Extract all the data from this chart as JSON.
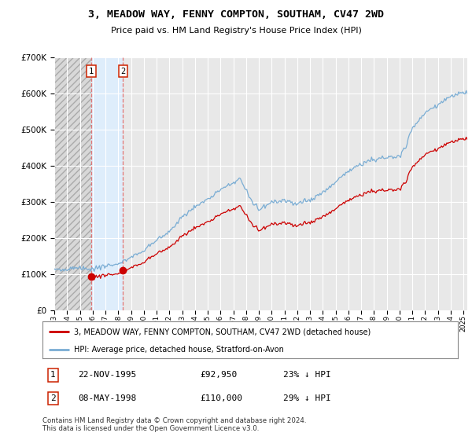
{
  "title": "3, MEADOW WAY, FENNY COMPTON, SOUTHAM, CV47 2WD",
  "subtitle": "Price paid vs. HM Land Registry's House Price Index (HPI)",
  "background_color": "#ffffff",
  "plot_bg_color": "#e8e8e8",
  "grid_color": "#ffffff",
  "hpi_color": "#7aadd4",
  "sale_color": "#cc0000",
  "highlight_color": "#ddeeff",
  "sale1_date": 1995.9,
  "sale1_price": 92950,
  "sale2_date": 1998.37,
  "sale2_price": 110000,
  "sale1_info": "22-NOV-1995",
  "sale1_amount": "£92,950",
  "sale1_hpi": "23% ↓ HPI",
  "sale2_info": "08-MAY-1998",
  "sale2_amount": "£110,000",
  "sale2_hpi": "29% ↓ HPI",
  "legend_label1": "3, MEADOW WAY, FENNY COMPTON, SOUTHAM, CV47 2WD (detached house)",
  "legend_label2": "HPI: Average price, detached house, Stratford-on-Avon",
  "footer": "Contains HM Land Registry data © Crown copyright and database right 2024.\nThis data is licensed under the Open Government Licence v3.0.",
  "ylim_max": 700000,
  "ylim_min": 0,
  "xmin": 1993,
  "xmax": 2025.3
}
